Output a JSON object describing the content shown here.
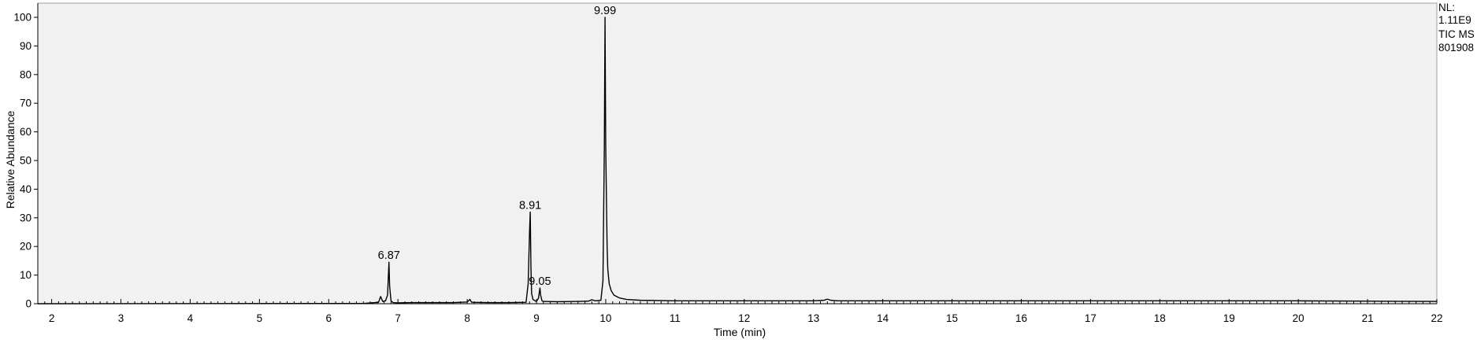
{
  "chart_data": {
    "type": "line",
    "xlabel": "Time (min)",
    "ylabel": "Relative Abundance",
    "xlim": [
      1.8,
      22
    ],
    "ylim": [
      0,
      100
    ],
    "x_ticks": [
      2,
      3,
      4,
      5,
      6,
      7,
      8,
      9,
      10,
      11,
      12,
      13,
      14,
      15,
      16,
      17,
      18,
      19,
      20,
      21,
      22
    ],
    "x_tick_labels": [
      "2",
      "3",
      "4",
      "5",
      "6",
      "7",
      "8",
      "9",
      "10",
      "11",
      "12",
      "13",
      "14",
      "15",
      "16",
      "17",
      "18",
      "19",
      "20",
      "21",
      "22"
    ],
    "y_ticks": [
      0,
      10,
      20,
      30,
      40,
      50,
      60,
      70,
      80,
      90,
      100
    ],
    "y_tick_labels": [
      "0",
      "10",
      "20",
      "30",
      "40",
      "50",
      "60",
      "70",
      "80",
      "90",
      "100"
    ],
    "grid": false,
    "plot_background": "#f1f1f1",
    "line_color": "#000000",
    "peak_labels": [
      {
        "x": 6.87,
        "y": 14.5,
        "text": "6.87"
      },
      {
        "x": 8.91,
        "y": 32.0,
        "text": "8.91"
      },
      {
        "x": 9.05,
        "y": 5.5,
        "text": "9.05"
      },
      {
        "x": 9.99,
        "y": 100.0,
        "text": "9.99"
      }
    ],
    "annotations": [
      "NL:",
      "1.11E9",
      "TIC MS",
      "801908"
    ],
    "series": [
      {
        "x": [
          1.8,
          6.5,
          6.72,
          6.75,
          6.78,
          6.82,
          6.85,
          6.87,
          6.88,
          6.9,
          6.93,
          7.0,
          7.2,
          7.8,
          8.0,
          8.04,
          8.06,
          8.08,
          8.3,
          8.6,
          8.85,
          8.88,
          8.9,
          8.91,
          8.92,
          8.93,
          8.95,
          8.98,
          9.0,
          9.03,
          9.05,
          9.06,
          9.08,
          9.1,
          9.3,
          9.6,
          9.75,
          9.8,
          9.85,
          9.93,
          9.96,
          9.98,
          9.99,
          10.0,
          10.01,
          10.02,
          10.03,
          10.05,
          10.08,
          10.12,
          10.2,
          10.3,
          10.5,
          11.0,
          12.0,
          13.0,
          13.15,
          13.2,
          13.25,
          13.35,
          14.0,
          16.0,
          18.0,
          20.0,
          21.0,
          22.0
        ],
        "y": [
          0.0,
          0.1,
          0.5,
          2.5,
          0.8,
          1.0,
          3.0,
          14.5,
          6.0,
          1.0,
          0.4,
          0.3,
          0.4,
          0.4,
          0.6,
          1.5,
          0.6,
          0.5,
          0.4,
          0.4,
          0.5,
          7.0,
          25.0,
          32.0,
          13.0,
          3.5,
          1.5,
          1.0,
          0.8,
          2.0,
          5.5,
          3.0,
          1.0,
          0.8,
          0.7,
          0.8,
          0.9,
          1.4,
          1.0,
          1.2,
          8.0,
          55.0,
          100.0,
          55.0,
          37.0,
          20.0,
          12.0,
          7.0,
          4.5,
          3.0,
          2.0,
          1.5,
          1.2,
          1.0,
          1.0,
          1.0,
          1.2,
          1.6,
          1.2,
          1.0,
          1.0,
          1.0,
          1.0,
          1.0,
          0.9,
          0.8
        ]
      }
    ]
  }
}
